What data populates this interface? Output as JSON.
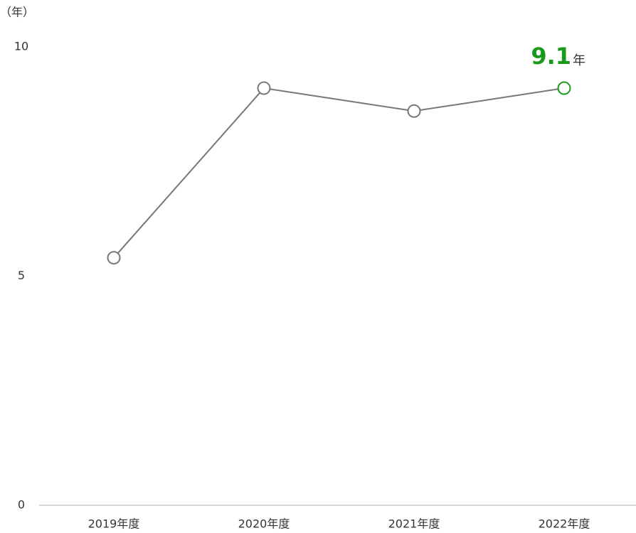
{
  "chart_data": {
    "type": "line",
    "y_label": "（年）",
    "categories": [
      "2019年度",
      "2020年度",
      "2021年度",
      "2022年度"
    ],
    "series": [
      {
        "color": "#777777",
        "values": [
          5.4,
          9.1,
          8.6,
          9.1
        ],
        "value_labels": [
          null,
          null,
          null,
          "9.1"
        ],
        "marker_colors": [
          "#777777",
          "#777777",
          "#777777",
          "#1a9a1a"
        ]
      }
    ],
    "label_unit": "年",
    "ylim": [
      0,
      10
    ],
    "yticks": [
      0,
      5,
      10
    ],
    "grid": false
  }
}
